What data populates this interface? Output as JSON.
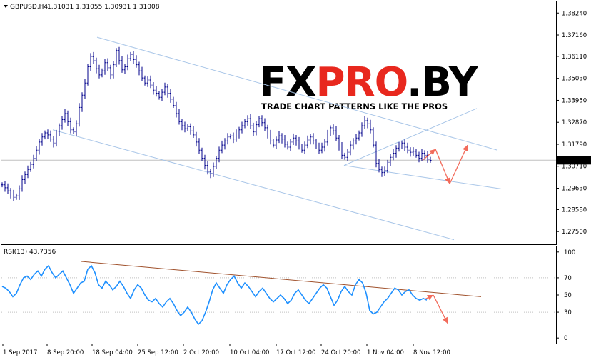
{
  "chart_data": {
    "type": "line",
    "symbol_header": "GBPUSD,H4",
    "ohlc_header": "1.31031 1.31055 1.30931 1.31008",
    "current_price_label": "1.31008",
    "current_price": 1.31008,
    "watermark": {
      "brand": "FXPRO.BY",
      "tagline": "TRADE CHART PATTERNS LIKE THE PROS"
    },
    "price_axis": {
      "ticks": [
        "1.38240",
        "1.37160",
        "1.36110",
        "1.35030",
        "1.33950",
        "1.32870",
        "1.31790",
        "1.30710",
        "1.29630",
        "1.28580",
        "1.27500"
      ],
      "ylim": [
        1.2698,
        1.386
      ]
    },
    "rsi_panel": {
      "header": "RSI(13) 43.7356",
      "ticks": [
        "100",
        "70",
        "50",
        "30",
        "0"
      ],
      "ylim": [
        -4,
        104
      ]
    },
    "x_axis": {
      "ticks": [
        "1 Sep 2017",
        "8 Sep 20:00",
        "18 Sep 04:00",
        "25 Sep 12:00",
        "2 Oct 20:00",
        "10 Oct 04:00",
        "17 Oct 12:00",
        "24 Oct 20:00",
        "1 Nov 04:00",
        "8 Nov 12:00"
      ]
    },
    "price_series": {
      "name": "",
      "x": [
        0,
        4,
        8,
        12,
        16,
        20,
        24,
        28,
        32,
        36,
        40,
        44,
        48,
        52,
        56,
        60,
        64,
        68,
        72,
        76,
        80,
        84,
        88,
        92,
        96,
        100,
        104,
        108,
        112,
        116,
        120,
        124,
        128,
        132,
        136,
        140,
        144,
        148,
        152,
        156,
        160,
        164,
        168,
        172,
        176,
        180,
        184,
        188,
        192,
        196,
        200,
        204,
        208,
        212,
        216,
        220,
        224,
        228,
        232,
        236,
        240,
        244,
        248,
        252,
        256,
        260,
        264,
        268,
        272,
        276,
        280,
        284,
        288,
        292,
        296,
        300,
        304,
        308,
        312,
        316,
        320,
        324,
        328,
        332,
        336,
        340,
        344,
        348,
        352,
        356,
        360,
        364,
        368,
        372,
        376,
        380,
        384,
        388,
        392,
        396,
        400,
        404,
        408,
        412,
        416,
        420,
        424,
        428,
        432,
        436,
        440,
        444,
        448,
        452,
        456,
        460,
        464,
        468,
        472,
        476,
        480,
        484,
        488,
        492,
        496,
        500,
        504,
        508,
        512,
        516,
        520,
        524,
        528,
        532,
        536,
        540,
        544,
        548,
        552,
        556,
        560,
        564,
        568,
        572,
        576,
        580,
        584,
        588,
        592,
        596,
        600
      ],
      "y": [
        1.298,
        1.2965,
        1.295,
        1.2935,
        1.2918,
        1.2925,
        1.296,
        1.3005,
        1.303,
        1.3055,
        1.308,
        1.311,
        1.315,
        1.319,
        1.3215,
        1.3235,
        1.3225,
        1.3205,
        1.3185,
        1.323,
        1.327,
        1.33,
        1.333,
        1.329,
        1.325,
        1.324,
        1.328,
        1.336,
        1.342,
        1.348,
        1.356,
        1.361,
        1.359,
        1.355,
        1.352,
        1.354,
        1.358,
        1.3555,
        1.352,
        1.357,
        1.364,
        1.359,
        1.3545,
        1.356,
        1.36,
        1.362,
        1.3595,
        1.357,
        1.354,
        1.3505,
        1.348,
        1.3495,
        1.347,
        1.3445,
        1.343,
        1.341,
        1.3435,
        1.346,
        1.343,
        1.34,
        1.337,
        1.333,
        1.329,
        1.327,
        1.3255,
        1.3265,
        1.3245,
        1.3225,
        1.319,
        1.315,
        1.311,
        1.3075,
        1.3045,
        1.3035,
        1.307,
        1.311,
        1.315,
        1.3175,
        1.3195,
        1.3215,
        1.322,
        1.3205,
        1.323,
        1.325,
        1.327,
        1.329,
        1.3305,
        1.327,
        1.324,
        1.3275,
        1.3305,
        1.3285,
        1.326,
        1.323,
        1.3195,
        1.3175,
        1.32,
        1.322,
        1.3205,
        1.318,
        1.3165,
        1.319,
        1.321,
        1.3195,
        1.317,
        1.315,
        1.3175,
        1.32,
        1.3215,
        1.3195,
        1.317,
        1.315,
        1.3165,
        1.319,
        1.323,
        1.326,
        1.3245,
        1.321,
        1.317,
        1.3125,
        1.3115,
        1.314,
        1.3175,
        1.3195,
        1.321,
        1.3235,
        1.327,
        1.3295,
        1.328,
        1.325,
        1.3175,
        1.3085,
        1.3055,
        1.304,
        1.305,
        1.309,
        1.3115,
        1.3135,
        1.316,
        1.317,
        1.3185,
        1.3165,
        1.315,
        1.314,
        1.3145,
        1.3125,
        1.311,
        1.3135,
        1.3125,
        1.3105,
        1.31
      ]
    },
    "rsi_series": {
      "name": "",
      "x": [
        0,
        5,
        10,
        15,
        20,
        25,
        30,
        35,
        40,
        45,
        50,
        55,
        60,
        65,
        70,
        75,
        80,
        85,
        90,
        95,
        100,
        105,
        110,
        115,
        120,
        125,
        130,
        135,
        140,
        145,
        150,
        155,
        160,
        165,
        170,
        175,
        180,
        185,
        190,
        195,
        200,
        205,
        210,
        215,
        220,
        225,
        230,
        235,
        240,
        245,
        250,
        255,
        260,
        265,
        270,
        275,
        280,
        285,
        290,
        295,
        300,
        305,
        310,
        315,
        320,
        325,
        330,
        335,
        340,
        345,
        350,
        355,
        360,
        365,
        370,
        375,
        380,
        385,
        390,
        395,
        400,
        405,
        410,
        415,
        420,
        425,
        430,
        435,
        440,
        445,
        450,
        455,
        460,
        465,
        470,
        475,
        480,
        485,
        490,
        495,
        500,
        505,
        510,
        515,
        520,
        525,
        530,
        535,
        540,
        545,
        550,
        555,
        560,
        565,
        570,
        575,
        580,
        585,
        590,
        595
      ],
      "y": [
        60,
        58,
        54,
        48,
        52,
        62,
        70,
        72,
        68,
        74,
        78,
        72,
        80,
        84,
        76,
        70,
        74,
        78,
        70,
        62,
        52,
        58,
        64,
        66,
        80,
        84,
        76,
        62,
        58,
        66,
        62,
        56,
        60,
        66,
        60,
        52,
        46,
        56,
        62,
        58,
        50,
        44,
        42,
        46,
        40,
        36,
        42,
        46,
        40,
        32,
        26,
        30,
        36,
        30,
        22,
        16,
        20,
        30,
        42,
        56,
        64,
        58,
        52,
        62,
        68,
        72,
        64,
        58,
        64,
        60,
        54,
        48,
        54,
        58,
        52,
        46,
        42,
        46,
        50,
        46,
        40,
        44,
        52,
        56,
        50,
        44,
        40,
        46,
        52,
        58,
        62,
        58,
        48,
        38,
        44,
        54,
        60,
        54,
        50,
        62,
        68,
        64,
        52,
        32,
        28,
        30,
        36,
        42,
        46,
        52,
        58,
        56,
        50,
        54,
        56,
        50,
        46,
        44,
        46,
        44
      ]
    },
    "price_trendlines": [
      {
        "name": "channel-upper",
        "points": [
          [
            136,
            1.3705
          ],
          [
            697,
            1.315
          ]
        ]
      },
      {
        "name": "channel-lower",
        "points": [
          [
            74,
            1.325
          ],
          [
            636,
            1.271
          ]
        ]
      },
      {
        "name": "wedge-upper",
        "points": [
          [
            482,
            1.3075
          ],
          [
            668,
            1.3355
          ]
        ]
      },
      {
        "name": "wedge-lower",
        "points": [
          [
            482,
            1.3075
          ],
          [
            702,
            1.296
          ]
        ]
      }
    ],
    "rsi_trendline": {
      "points": [
        [
          114,
          89
        ],
        [
          674,
          48
        ]
      ]
    },
    "forecast_arrows": {
      "price": [
        [
          592,
          1.31
        ],
        [
          610,
          1.3155
        ],
        [
          630,
          1.2985
        ],
        [
          655,
          1.3175
        ]
      ],
      "rsi": [
        [
          595,
          45
        ],
        [
          607,
          50
        ],
        [
          627,
          17
        ]
      ]
    },
    "colors": {
      "price_bars": "#00008b",
      "rsi_line": "#1e90ff",
      "channel_lines": "#a9c6e8",
      "rsi_trendline": "#a0522d",
      "forecast_arrows": "#f26b5b",
      "watermark_dark": "#1a1a1a",
      "watermark_red": "#e8281e",
      "price_tag_bg": "#000000",
      "price_tag_text": "#ffffff",
      "grid_line": "#c0c0c0"
    }
  }
}
